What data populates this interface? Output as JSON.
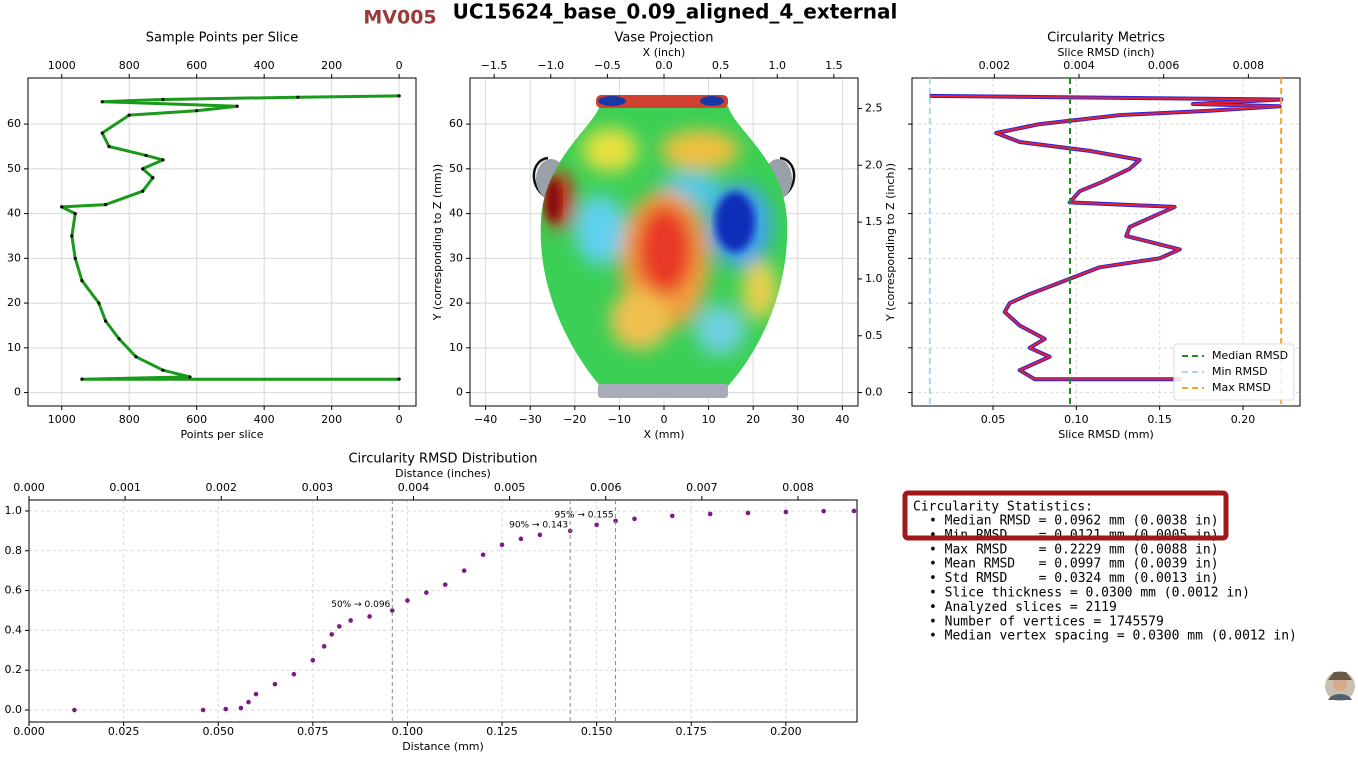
{
  "header": {
    "badge": "MV005",
    "title": "UC15624_base_0.09_aligned_4_external"
  },
  "chart_data": [
    {
      "type": "line",
      "title": "Sample Points per Slice",
      "xlabel": "Points per slice",
      "values": [
        0,
        940,
        620,
        700,
        780,
        830,
        870,
        890,
        940,
        960,
        970,
        960,
        1000,
        870,
        760,
        730,
        760,
        700,
        750,
        860,
        880,
        800,
        600,
        480,
        880,
        700,
        300,
        0
      ],
      "y": [
        3,
        3,
        3.5,
        5,
        8,
        12,
        16,
        20,
        25,
        30,
        35,
        40,
        41.5,
        42,
        45,
        48,
        50,
        52,
        53,
        55,
        58,
        62,
        63,
        64,
        65,
        65.5,
        66,
        66.3
      ],
      "color": "#1a9a1a",
      "marker_color": "#000000",
      "xlim": [
        1100,
        -50
      ],
      "xticks": [
        1000,
        800,
        600,
        400,
        200,
        0
      ],
      "ylim": [
        -3,
        70.3
      ],
      "yticks": [
        0,
        10,
        20,
        30,
        40,
        50,
        60
      ],
      "grid": true,
      "grid_style": "solid"
    },
    {
      "type": "image",
      "title": "Vase Projection",
      "xlabel": "X (mm)",
      "x2label": "X (inch)",
      "ylabel": "Y (corresponding to Z (mm))",
      "y2label": "Y (corresponding to Z (inch))",
      "xlim": [
        -43.5,
        43.5
      ],
      "xticks": [
        {
          "value": -40,
          "label": "−40"
        },
        {
          "value": -30,
          "label": "−30"
        },
        {
          "value": -20,
          "label": "−20"
        },
        {
          "value": -10,
          "label": "−10"
        },
        0,
        10,
        20,
        30,
        40
      ],
      "x2lim": [
        -1.713,
        1.713
      ],
      "x2ticks": [
        {
          "value": -1.5,
          "label": "−1.5"
        },
        {
          "value": -1.0,
          "label": "−1.0"
        },
        {
          "value": -0.5,
          "label": "−0.5"
        },
        {
          "value": 0,
          "label": "0.0"
        },
        0.5,
        {
          "value": 1.0,
          "label": "1.0"
        },
        1.5
      ],
      "ylim": [
        -3,
        70.3
      ],
      "yticks": [
        0,
        10,
        20,
        30,
        40,
        50,
        60
      ],
      "y2lim": [
        -0.118,
        2.768
      ],
      "y2ticks": [
        {
          "value": 0,
          "label": "0.0"
        },
        0.5,
        {
          "value": 1.0,
          "label": "1.0"
        },
        1.5,
        {
          "value": 2.0,
          "label": "2.0"
        },
        2.5
      ],
      "grid": true,
      "grid_style": "solid"
    },
    {
      "type": "line",
      "title": "Circularity Metrics",
      "xlabel": "Slice RMSD (mm)",
      "x2label": "Slice RMSD (inch)",
      "values": [
        0.163,
        0.075,
        0.066,
        0.084,
        0.072,
        0.081,
        0.066,
        0.057,
        0.06,
        0.072,
        0.093,
        0.114,
        0.15,
        0.162,
        0.13,
        0.132,
        0.15,
        0.159,
        0.096,
        0.102,
        0.115,
        0.132,
        0.138,
        0.108,
        0.066,
        0.052,
        0.078,
        0.126,
        0.18,
        0.222,
        0.17,
        0.223,
        0.012
      ],
      "y": [
        3,
        3,
        5,
        8,
        10,
        12,
        15,
        18,
        20,
        22,
        25,
        28,
        30,
        32,
        35,
        37,
        40,
        41.5,
        42.5,
        45,
        47,
        50,
        52,
        54,
        56,
        58,
        60,
        62,
        63,
        64,
        64.5,
        65.5,
        66.3
      ],
      "color": "#2828e0",
      "overlay_color": "#e8202a",
      "xlim": [
        0.0014,
        0.2342
      ],
      "xticks": [
        0.05,
        {
          "value": 0.1,
          "label": "0.10"
        },
        0.15,
        {
          "value": 0.2,
          "label": "0.20"
        }
      ],
      "x2lim": [
        5.5e-05,
        0.00922
      ],
      "x2ticks": [
        0.002,
        0.004,
        0.006,
        0.008
      ],
      "ylim": [
        -3,
        70.3
      ],
      "yticks": [
        0,
        10,
        20,
        30,
        40,
        50,
        60
      ],
      "lines": [
        {
          "name": "Median RMSD",
          "value": 0.0962,
          "color": "#228b22"
        },
        {
          "name": "Min RMSD",
          "value": 0.0121,
          "color": "#a8d8e8"
        },
        {
          "name": "Max RMSD",
          "value": 0.2229,
          "color": "#f5a623"
        }
      ],
      "legend": "lower right",
      "grid": true,
      "grid_style": "dashed"
    },
    {
      "type": "scatter",
      "title": "Circularity RMSD Distribution",
      "xlabel": "Distance (mm)",
      "x2label": "Distance (inches)",
      "x": [
        0.012,
        0.046,
        0.052,
        0.056,
        0.058,
        0.06,
        0.065,
        0.07,
        0.075,
        0.078,
        0.08,
        0.082,
        0.085,
        0.09,
        0.096,
        0.1,
        0.105,
        0.11,
        0.115,
        0.12,
        0.125,
        0.13,
        0.135,
        0.143,
        0.15,
        0.155,
        0.16,
        0.17,
        0.18,
        0.19,
        0.2,
        0.21,
        0.218
      ],
      "values": [
        0,
        0,
        0.005,
        0.01,
        0.04,
        0.08,
        0.13,
        0.18,
        0.25,
        0.32,
        0.38,
        0.42,
        0.45,
        0.47,
        0.5,
        0.55,
        0.59,
        0.63,
        0.7,
        0.78,
        0.83,
        0.86,
        0.88,
        0.9,
        0.93,
        0.95,
        0.96,
        0.975,
        0.985,
        0.99,
        0.995,
        0.999,
        1.0
      ],
      "color": "#7b1a86",
      "xlim": [
        0,
        0.2188
      ],
      "xticks": [
        {
          "value": 0,
          "label": "0.000"
        },
        0.025,
        {
          "value": 0.05,
          "label": "0.050"
        },
        0.075,
        {
          "value": 0.1,
          "label": "0.100"
        },
        0.125,
        {
          "value": 0.15,
          "label": "0.150"
        },
        0.175,
        {
          "value": 0.2,
          "label": "0.200"
        }
      ],
      "x2lim": [
        0,
        0.008614
      ],
      "x2ticks": [
        {
          "value": 0,
          "label": "0.000"
        },
        0.001,
        0.002,
        0.003,
        0.004,
        0.005,
        0.006,
        0.007,
        0.008
      ],
      "ylim": [
        -0.06,
        1.055
      ],
      "yticks": [
        {
          "value": 0,
          "label": "0.0"
        },
        0.2,
        0.4,
        0.6,
        0.8,
        {
          "value": 1.0,
          "label": "1.0"
        }
      ],
      "annotations": [
        {
          "text": "50% → 0.096",
          "x": 0.096,
          "y": 0.5
        },
        {
          "text": "90% → 0.143",
          "x": 0.143,
          "y": 0.9
        },
        {
          "text": "95% → 0.155",
          "x": 0.155,
          "y": 0.95
        }
      ],
      "grid": true,
      "grid_style": "dashed"
    }
  ],
  "statistics": {
    "title": "Circularity Statistics:",
    "lines": [
      "• Median RMSD = 0.0962 mm (0.0038 in)",
      "• Min RMSD    = 0.0121 mm (0.0005 in)",
      "• Max RMSD    = 0.2229 mm (0.0088 in)",
      "• Mean RMSD   = 0.0997 mm (0.0039 in)",
      "• Std RMSD    = 0.0324 mm (0.0013 in)",
      "• Slice thickness = 0.0300 mm (0.0012 in)",
      "• Analyzed slices = 2119",
      "• Number of vertices = 1745579",
      "• Median vertex spacing = 0.0300 mm (0.0012 in)"
    ]
  }
}
